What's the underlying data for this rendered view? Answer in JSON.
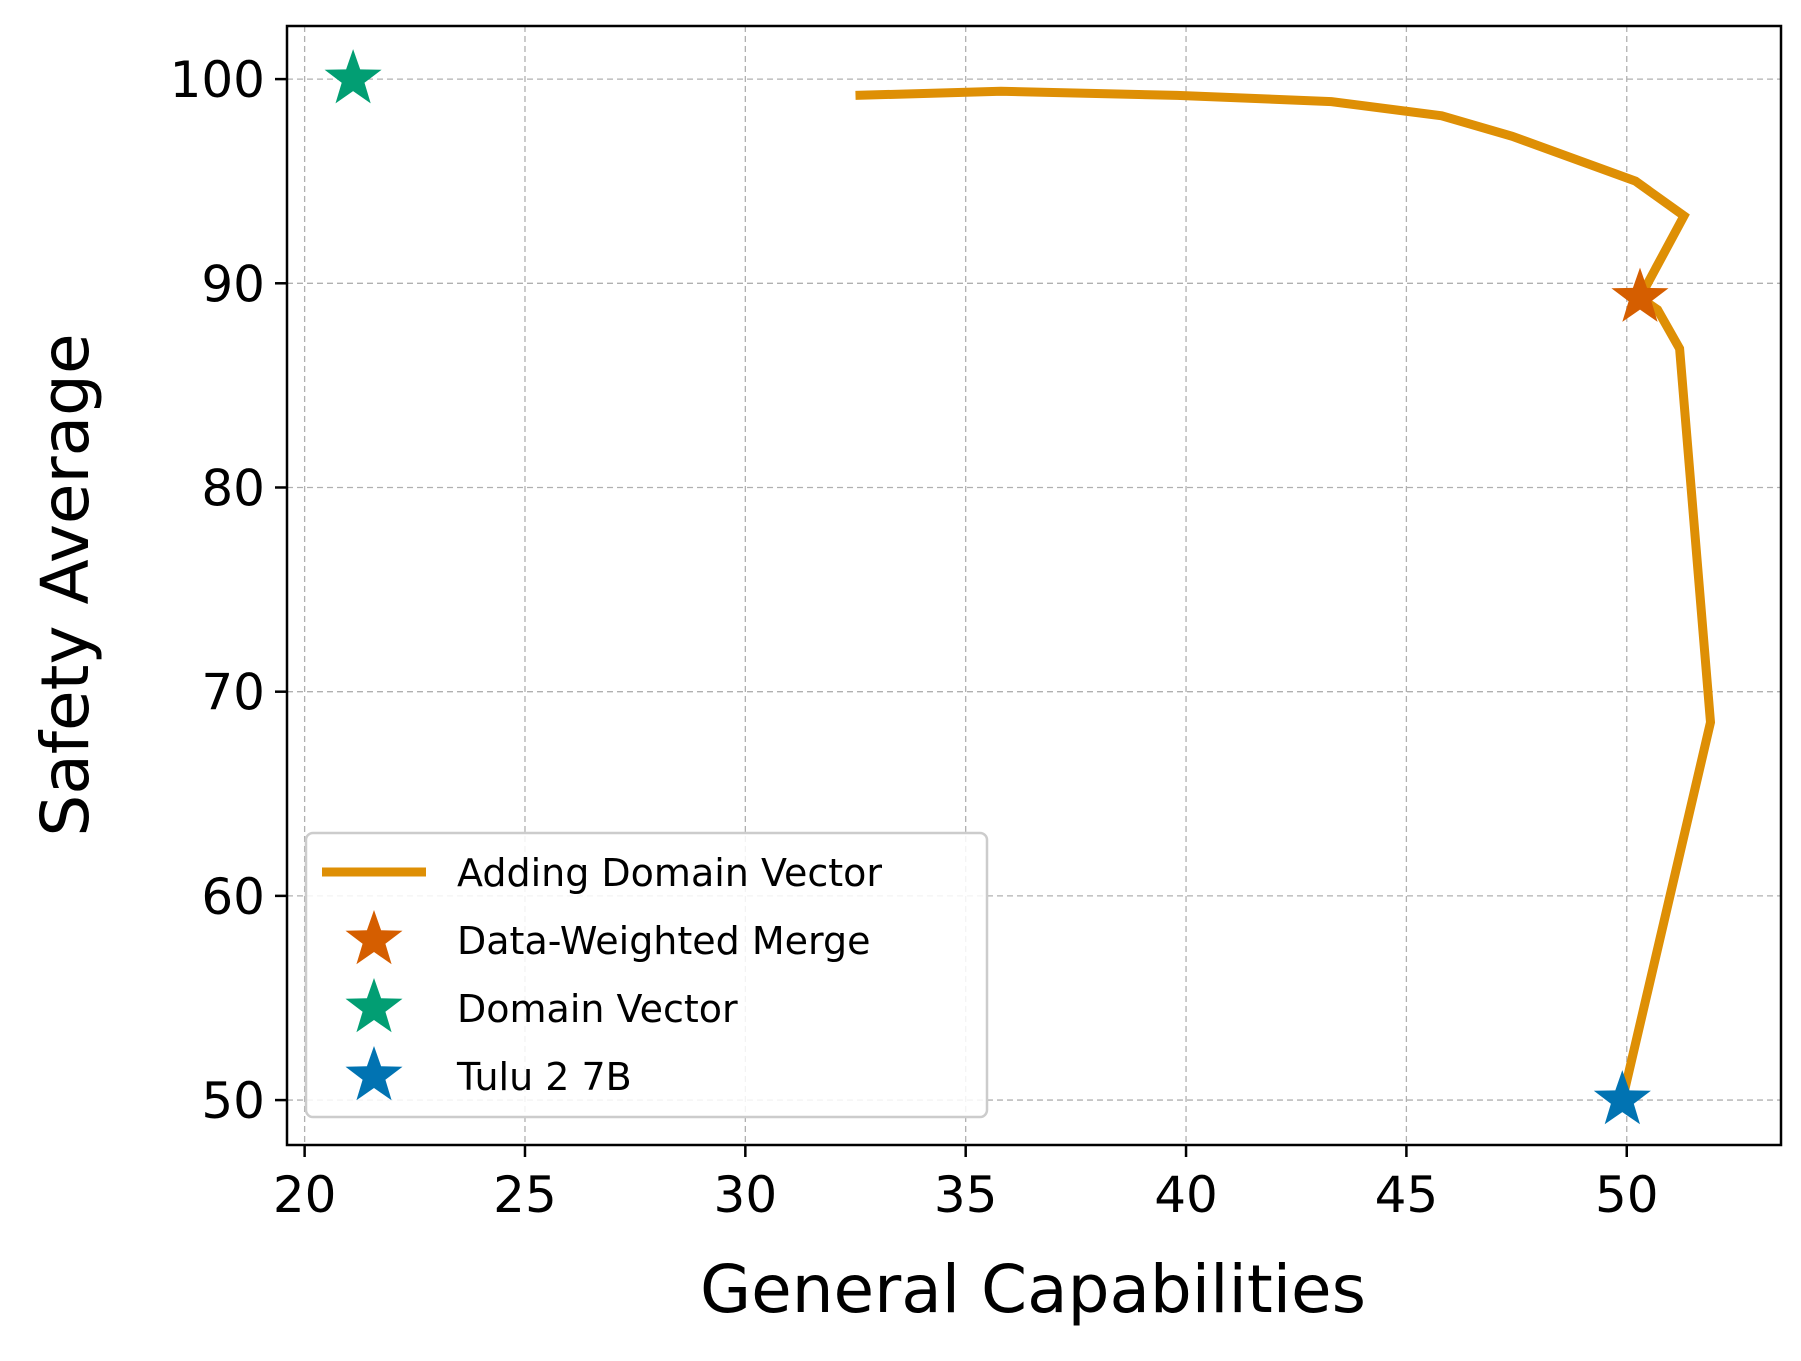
{
  "chart_data": {
    "type": "line",
    "xlabel": "General Capabilities",
    "ylabel": "Safety Average",
    "xlim": [
      19.6,
      53.5
    ],
    "ylim": [
      47.8,
      102.6
    ],
    "xticks": [
      20,
      25,
      30,
      35,
      40,
      45,
      50
    ],
    "yticks": [
      50,
      60,
      70,
      80,
      90,
      100
    ],
    "grid": true,
    "legend_position": "lower-left",
    "series": [
      {
        "name": "Adding Domain Vector",
        "kind": "line",
        "color": "#de8f05",
        "x": [
          49.9,
          51.9,
          51.2,
          50.7,
          50.3,
          51.3,
          50.2,
          47.4,
          45.8,
          43.3,
          39.8,
          35.8,
          32.5
        ],
        "y": [
          50.0,
          68.5,
          86.8,
          88.7,
          89.3,
          93.3,
          95.0,
          97.2,
          98.2,
          98.9,
          99.2,
          99.4,
          99.2
        ]
      },
      {
        "name": "Data-Weighted Merge",
        "kind": "star",
        "color": "#d55e00",
        "x": [
          50.3
        ],
        "y": [
          89.3
        ]
      },
      {
        "name": "Domain Vector",
        "kind": "star",
        "color": "#029e73",
        "x": [
          21.1
        ],
        "y": [
          100.0
        ]
      },
      {
        "name": "Tulu 2 7B",
        "kind": "star",
        "color": "#0173b2",
        "x": [
          49.9
        ],
        "y": [
          50.0
        ]
      }
    ]
  }
}
